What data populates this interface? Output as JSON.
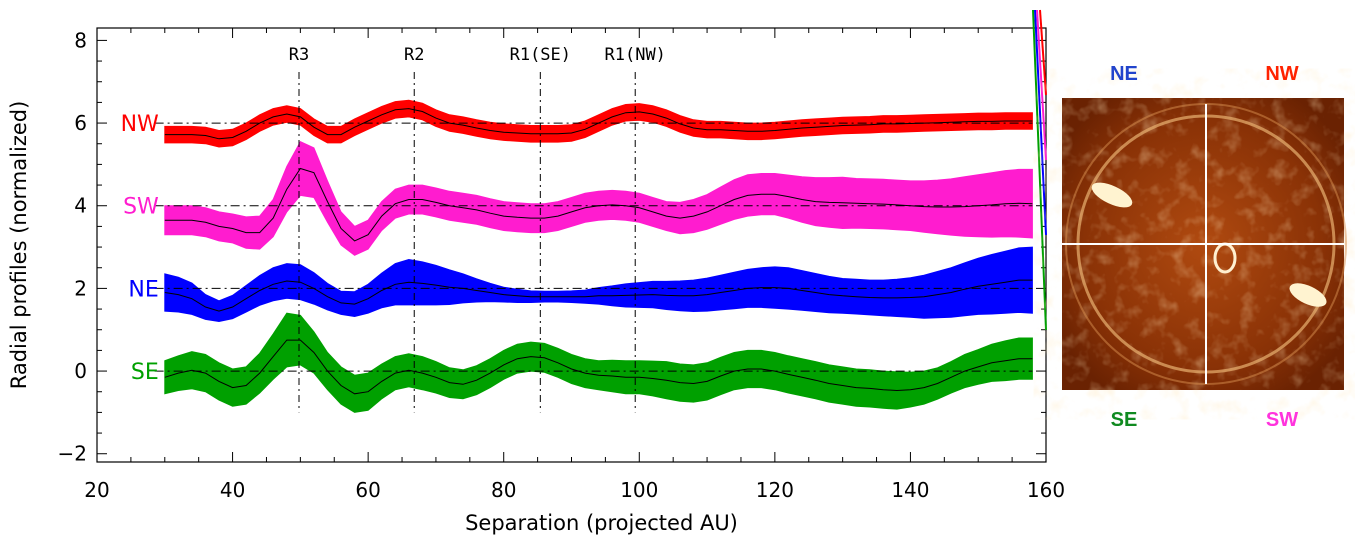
{
  "chart_data": {
    "type": "area",
    "xlabel": "Separation (projected AU)",
    "ylabel": "Radial profiles (normalized)",
    "xlim": [
      20,
      160
    ],
    "ylim": [
      -2.2,
      8.3
    ],
    "x_ticks": [
      20,
      40,
      60,
      80,
      100,
      120,
      140,
      160
    ],
    "y_ticks": [
      -2,
      0,
      2,
      4,
      6,
      8
    ],
    "vertical_markers": [
      {
        "label": "R3",
        "x": 49.8
      },
      {
        "label": "R2",
        "x": 66.8
      },
      {
        "label": "R1(SE)",
        "x": 85.4
      },
      {
        "label": "R1(NW)",
        "x": 99.4
      }
    ],
    "x": [
      30,
      32,
      34,
      36,
      38,
      40,
      42,
      44,
      46,
      48,
      50,
      52,
      54,
      56,
      58,
      60,
      62,
      64,
      66,
      68,
      70,
      72,
      74,
      76,
      78,
      80,
      82,
      84,
      86,
      88,
      90,
      92,
      94,
      96,
      98,
      100,
      102,
      104,
      106,
      108,
      110,
      112,
      114,
      116,
      118,
      120,
      122,
      124,
      126,
      128,
      130,
      132,
      134,
      136,
      138,
      140,
      142,
      144,
      146,
      148,
      150,
      152,
      154,
      156,
      158
    ],
    "series": [
      {
        "name": "NW",
        "offset": 6,
        "color": "#ff0000",
        "mean": [
          5.72,
          5.72,
          5.72,
          5.7,
          5.62,
          5.65,
          5.8,
          6.0,
          6.15,
          6.22,
          6.15,
          5.9,
          5.72,
          5.72,
          5.9,
          6.05,
          6.2,
          6.32,
          6.35,
          6.28,
          6.12,
          6.0,
          5.95,
          5.88,
          5.82,
          5.78,
          5.76,
          5.74,
          5.74,
          5.74,
          5.76,
          5.85,
          6.0,
          6.15,
          6.25,
          6.27,
          6.22,
          6.12,
          5.98,
          5.88,
          5.84,
          5.84,
          5.82,
          5.8,
          5.8,
          5.82,
          5.85,
          5.88,
          5.9,
          5.92,
          5.94,
          5.95,
          5.96,
          5.98,
          5.98,
          5.99,
          6.0,
          6.01,
          6.02,
          6.03,
          6.04,
          6.04,
          6.05,
          6.05,
          6.05
        ],
        "halfwidth": [
          0.2,
          0.2,
          0.2,
          0.2,
          0.2,
          0.2,
          0.2,
          0.2,
          0.2,
          0.2,
          0.2,
          0.2,
          0.2,
          0.2,
          0.2,
          0.2,
          0.2,
          0.2,
          0.2,
          0.2,
          0.2,
          0.2,
          0.2,
          0.2,
          0.2,
          0.2,
          0.2,
          0.2,
          0.2,
          0.2,
          0.2,
          0.2,
          0.2,
          0.2,
          0.2,
          0.2,
          0.2,
          0.2,
          0.2,
          0.2,
          0.2,
          0.2,
          0.2,
          0.2,
          0.2,
          0.2,
          0.2,
          0.2,
          0.2,
          0.2,
          0.2,
          0.2,
          0.2,
          0.2,
          0.2,
          0.2,
          0.2,
          0.2,
          0.2,
          0.2,
          0.2,
          0.2,
          0.2,
          0.2,
          0.2
        ]
      },
      {
        "name": "SW",
        "offset": 4,
        "color": "#ff1ccf",
        "mean": [
          3.65,
          3.65,
          3.65,
          3.6,
          3.5,
          3.45,
          3.35,
          3.35,
          3.7,
          4.4,
          4.9,
          4.8,
          4.1,
          3.45,
          3.15,
          3.3,
          3.75,
          4.05,
          4.15,
          4.15,
          4.08,
          4.0,
          3.95,
          3.9,
          3.82,
          3.75,
          3.72,
          3.7,
          3.7,
          3.75,
          3.85,
          3.95,
          4.0,
          4.02,
          4.0,
          3.95,
          3.85,
          3.75,
          3.7,
          3.75,
          3.85,
          4.0,
          4.15,
          4.25,
          4.28,
          4.28,
          4.22,
          4.15,
          4.1,
          4.08,
          4.07,
          4.06,
          4.05,
          4.04,
          4.02,
          4.0,
          3.98,
          3.97,
          3.97,
          3.98,
          4.0,
          4.02,
          4.05,
          4.06,
          4.05
        ],
        "halfwidth": [
          0.35,
          0.35,
          0.35,
          0.35,
          0.35,
          0.35,
          0.38,
          0.4,
          0.45,
          0.55,
          0.65,
          0.6,
          0.5,
          0.4,
          0.35,
          0.35,
          0.35,
          0.35,
          0.35,
          0.35,
          0.35,
          0.35,
          0.35,
          0.35,
          0.35,
          0.35,
          0.35,
          0.35,
          0.35,
          0.35,
          0.35,
          0.35,
          0.35,
          0.35,
          0.35,
          0.35,
          0.35,
          0.35,
          0.38,
          0.4,
          0.42,
          0.45,
          0.48,
          0.5,
          0.5,
          0.5,
          0.52,
          0.55,
          0.58,
          0.6,
          0.62,
          0.6,
          0.6,
          0.6,
          0.6,
          0.6,
          0.62,
          0.65,
          0.68,
          0.72,
          0.75,
          0.78,
          0.8,
          0.82,
          0.83
        ]
      },
      {
        "name": "NE",
        "offset": 2,
        "color": "#0000ff",
        "mean": [
          1.9,
          1.85,
          1.75,
          1.55,
          1.45,
          1.55,
          1.75,
          1.95,
          2.1,
          2.18,
          2.15,
          2.0,
          1.8,
          1.65,
          1.62,
          1.75,
          1.95,
          2.1,
          2.15,
          2.12,
          2.08,
          2.03,
          2.0,
          1.95,
          1.9,
          1.85,
          1.82,
          1.8,
          1.8,
          1.8,
          1.8,
          1.8,
          1.82,
          1.82,
          1.83,
          1.84,
          1.85,
          1.83,
          1.82,
          1.82,
          1.85,
          1.9,
          1.95,
          2.0,
          2.02,
          2.02,
          2.0,
          1.95,
          1.9,
          1.85,
          1.82,
          1.8,
          1.78,
          1.77,
          1.77,
          1.78,
          1.8,
          1.85,
          1.9,
          1.98,
          2.05,
          2.1,
          2.15,
          2.2,
          2.2
        ],
        "halfwidth": [
          0.45,
          0.42,
          0.38,
          0.3,
          0.25,
          0.28,
          0.32,
          0.36,
          0.4,
          0.42,
          0.42,
          0.38,
          0.32,
          0.28,
          0.3,
          0.35,
          0.42,
          0.5,
          0.55,
          0.52,
          0.48,
          0.42,
          0.35,
          0.28,
          0.22,
          0.18,
          0.16,
          0.14,
          0.13,
          0.13,
          0.14,
          0.16,
          0.2,
          0.24,
          0.28,
          0.3,
          0.32,
          0.34,
          0.36,
          0.38,
          0.4,
          0.42,
          0.44,
          0.46,
          0.48,
          0.5,
          0.5,
          0.48,
          0.46,
          0.44,
          0.42,
          0.42,
          0.42,
          0.43,
          0.45,
          0.48,
          0.52,
          0.56,
          0.6,
          0.64,
          0.68,
          0.72,
          0.75,
          0.78,
          0.8
        ]
      },
      {
        "name": "SE",
        "offset": 0,
        "color": "#00a000",
        "mean": [
          -0.15,
          -0.05,
          0.02,
          -0.05,
          -0.25,
          -0.4,
          -0.35,
          -0.05,
          0.35,
          0.75,
          0.75,
          0.45,
          0.0,
          -0.35,
          -0.55,
          -0.5,
          -0.25,
          -0.05,
          0.02,
          -0.05,
          -0.15,
          -0.28,
          -0.32,
          -0.22,
          -0.05,
          0.15,
          0.3,
          0.35,
          0.32,
          0.2,
          0.05,
          -0.05,
          -0.1,
          -0.12,
          -0.15,
          -0.15,
          -0.18,
          -0.22,
          -0.28,
          -0.3,
          -0.25,
          -0.12,
          0.0,
          0.05,
          0.05,
          0.0,
          -0.08,
          -0.15,
          -0.22,
          -0.3,
          -0.35,
          -0.4,
          -0.42,
          -0.45,
          -0.47,
          -0.45,
          -0.4,
          -0.3,
          -0.15,
          0.0,
          0.1,
          0.2,
          0.25,
          0.3,
          0.3
        ],
        "halfwidth": [
          0.4,
          0.42,
          0.45,
          0.45,
          0.45,
          0.45,
          0.45,
          0.48,
          0.55,
          0.65,
          0.6,
          0.5,
          0.45,
          0.45,
          0.45,
          0.45,
          0.42,
          0.4,
          0.4,
          0.4,
          0.38,
          0.36,
          0.35,
          0.35,
          0.35,
          0.35,
          0.35,
          0.35,
          0.35,
          0.35,
          0.35,
          0.35,
          0.35,
          0.38,
          0.4,
          0.4,
          0.42,
          0.45,
          0.45,
          0.45,
          0.45,
          0.45,
          0.45,
          0.45,
          0.45,
          0.45,
          0.45,
          0.45,
          0.45,
          0.45,
          0.45,
          0.45,
          0.45,
          0.45,
          0.45,
          0.42,
          0.4,
          0.38,
          0.38,
          0.4,
          0.42,
          0.45,
          0.48,
          0.5,
          0.5
        ]
      }
    ]
  },
  "inset": {
    "quadrant_labels": [
      {
        "text": "NE",
        "color": "#2244cc"
      },
      {
        "text": "NW",
        "color": "#ff2200"
      },
      {
        "text": "SE",
        "color": "#108a20"
      },
      {
        "text": "SW",
        "color": "#ff33dd"
      }
    ]
  }
}
